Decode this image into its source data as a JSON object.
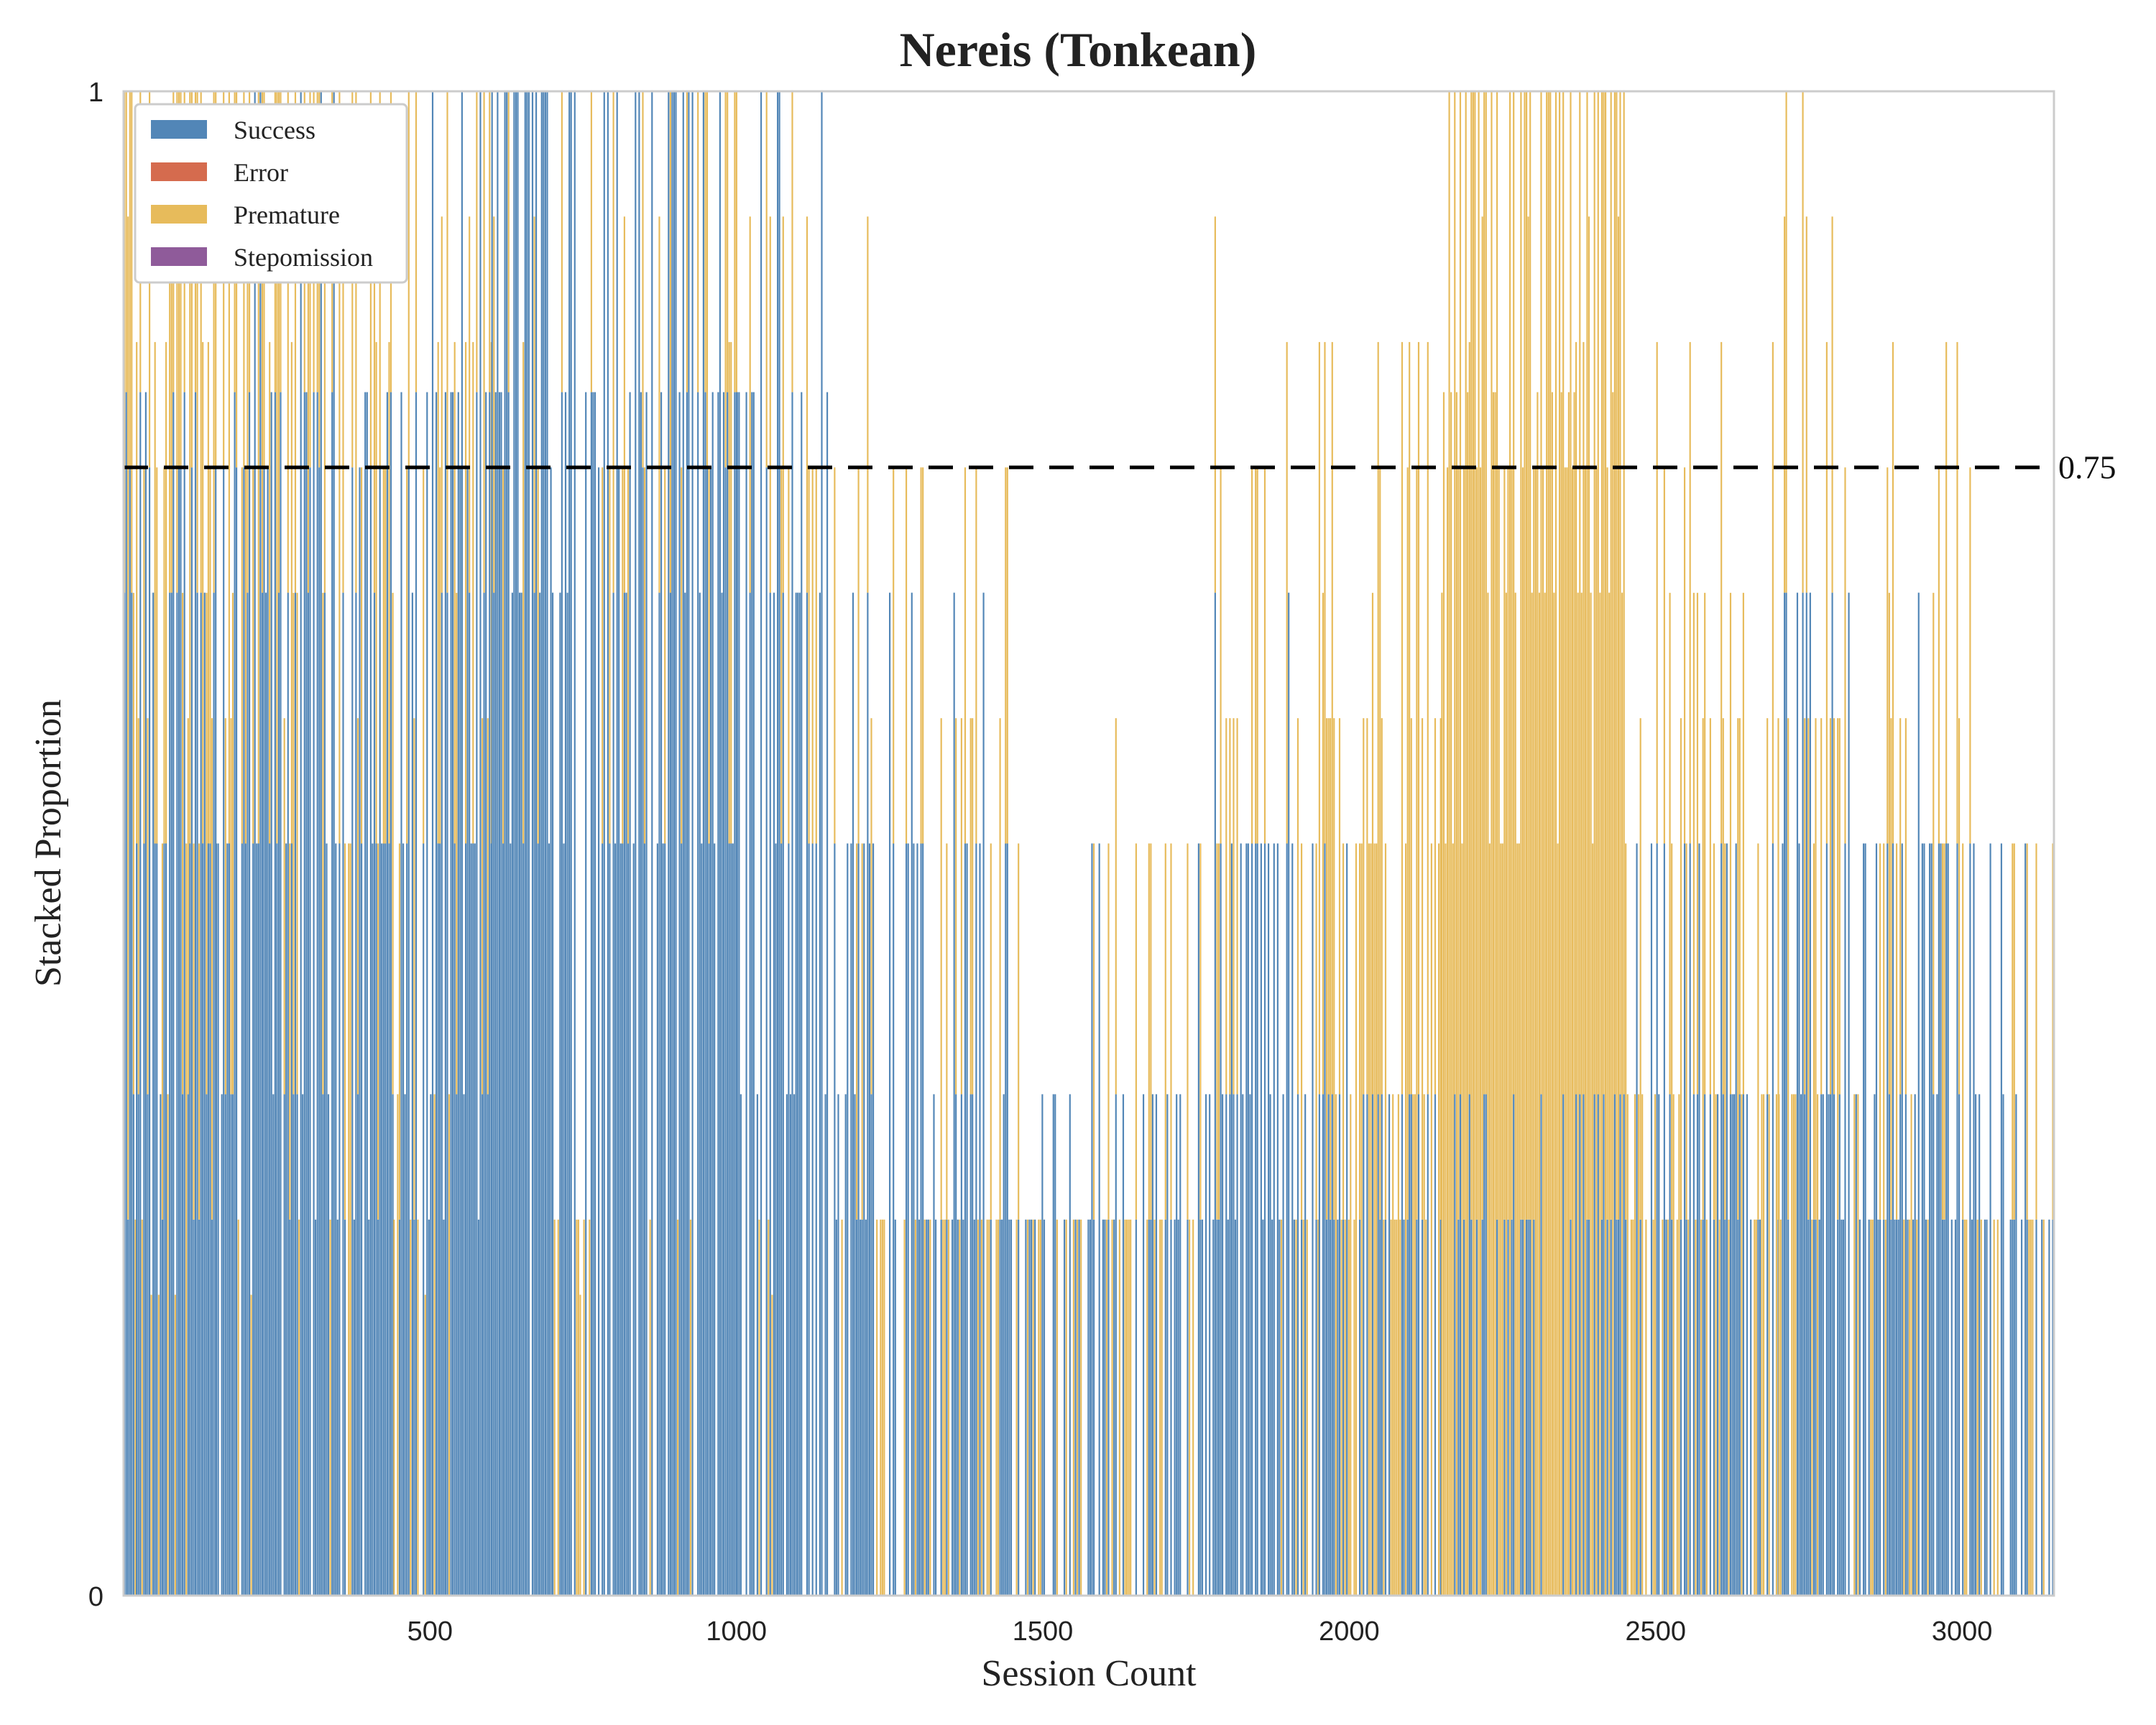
{
  "chart_data": {
    "type": "bar",
    "stacked": true,
    "title": "Nereis (Tonkean)",
    "xlabel": "Session Count",
    "ylabel": "Stacked Proportion",
    "xlim": [
      0,
      3150
    ],
    "ylim": [
      0,
      1
    ],
    "x_ticks": [
      500,
      1000,
      1500,
      2000,
      2500,
      3000
    ],
    "x_tick_labels": [
      "500",
      "1000",
      "1500",
      "2000",
      "2500",
      "3000"
    ],
    "y_ticks": [
      0,
      1
    ],
    "y_tick_labels": [
      "0",
      "1"
    ],
    "grid": false,
    "legend_position": "upper-left",
    "threshold": {
      "value": 0.75,
      "label": "0.75",
      "style": "dashed",
      "color": "#000000"
    },
    "series": [
      {
        "name": "Success",
        "color": "#5286b7"
      },
      {
        "name": "Error",
        "color": "#d56b4e"
      },
      {
        "name": "Premature",
        "color": "#e7bb5b"
      },
      {
        "name": "Stepomission",
        "color": "#8f5b9a"
      }
    ],
    "segments": [
      {
        "x_range": [
          0,
          20
        ],
        "Success": 0.5,
        "Premature": 0.5
      },
      {
        "x_range": [
          20,
          150
        ],
        "Success": 0.55,
        "Premature": 0.3
      },
      {
        "x_range": [
          150,
          440
        ],
        "Success": 0.57,
        "Premature": 0.25
      },
      {
        "x_range": [
          440,
          600
        ],
        "Success": 0.6,
        "Premature": 0.15
      },
      {
        "x_range": [
          600,
          1000
        ],
        "Success": 0.78,
        "Premature": 0.1
      },
      {
        "x_range": [
          1000,
          1150
        ],
        "Success": 0.65,
        "Premature": 0.05
      },
      {
        "x_range": [
          1150,
          1300
        ],
        "Success": 0.3,
        "Premature": 0.05
      },
      {
        "x_range": [
          1300,
          1450
        ],
        "Success": 0.25,
        "Premature": 0.05
      },
      {
        "x_range": [
          1450,
          1750
        ],
        "Success": 0.08,
        "Premature": 0.03
      },
      {
        "x_range": [
          1750,
          1950
        ],
        "Success": 0.3,
        "Premature": 0.05
      },
      {
        "x_range": [
          1950,
          2150
        ],
        "Success": 0.15,
        "Premature": 0.3
      },
      {
        "x_range": [
          2150,
          2450
        ],
        "Success": 0.06,
        "Premature": 0.72
      },
      {
        "x_range": [
          2450,
          2700
        ],
        "Success": 0.2,
        "Premature": 0.15
      },
      {
        "x_range": [
          2700,
          2850
        ],
        "Success": 0.3,
        "Premature": 0.12
      },
      {
        "x_range": [
          2850,
          3000
        ],
        "Success": 0.3,
        "Premature": 0.1
      },
      {
        "x_range": [
          3000,
          3150
        ],
        "Success": 0.15,
        "Premature": 0.05
      }
    ]
  }
}
